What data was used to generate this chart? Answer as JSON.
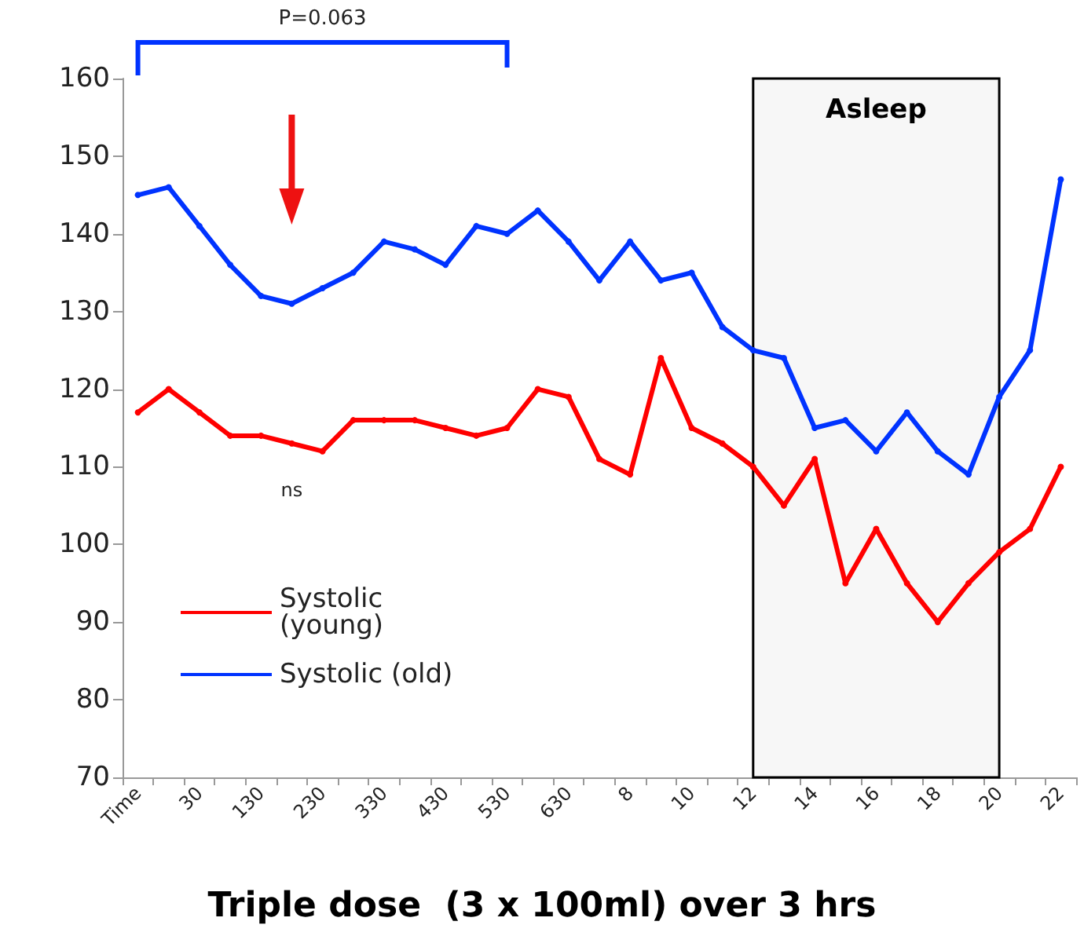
{
  "chart_data": {
    "type": "line",
    "title": "Triple dose  (3 x 100ml) over 3 hrs",
    "categories": [
      "Time",
      null,
      "30",
      null,
      "130",
      null,
      "230",
      null,
      "330",
      null,
      "430",
      null,
      "530",
      null,
      "630",
      null,
      "8",
      null,
      "10",
      null,
      "12",
      null,
      "14",
      null,
      "16",
      null,
      "18",
      null,
      "20",
      null,
      "22"
    ],
    "series": [
      {
        "name": "Systolic (young)",
        "color": "#ff0000",
        "values": [
          117,
          120,
          117,
          114,
          114,
          113,
          112,
          116,
          116,
          116,
          115,
          114,
          115,
          120,
          119,
          111,
          109,
          124,
          115,
          113,
          110,
          105,
          111,
          95,
          102,
          95,
          90,
          95,
          99,
          102,
          110
        ]
      },
      {
        "name": "Systolic (old)",
        "color": "#0033ff",
        "values": [
          145,
          146,
          141,
          136,
          132,
          131,
          133,
          135,
          139,
          138,
          136,
          141,
          140,
          143,
          139,
          134,
          139,
          134,
          135,
          128,
          125,
          124,
          115,
          116,
          112,
          117,
          112,
          109,
          119,
          125,
          147
        ]
      }
    ],
    "ylim": [
      70,
      160
    ],
    "yticks": [
      70,
      80,
      90,
      100,
      110,
      120,
      130,
      140,
      150,
      160
    ],
    "bands": [
      {
        "axis": "x",
        "from": "12",
        "to": "20",
        "label": "Asleep",
        "color": "#000000"
      }
    ],
    "annotations": [
      "P=0.063",
      "ns"
    ],
    "legend": "bottom left",
    "grid": false,
    "marker": "circle",
    "line_style": "solid"
  }
}
